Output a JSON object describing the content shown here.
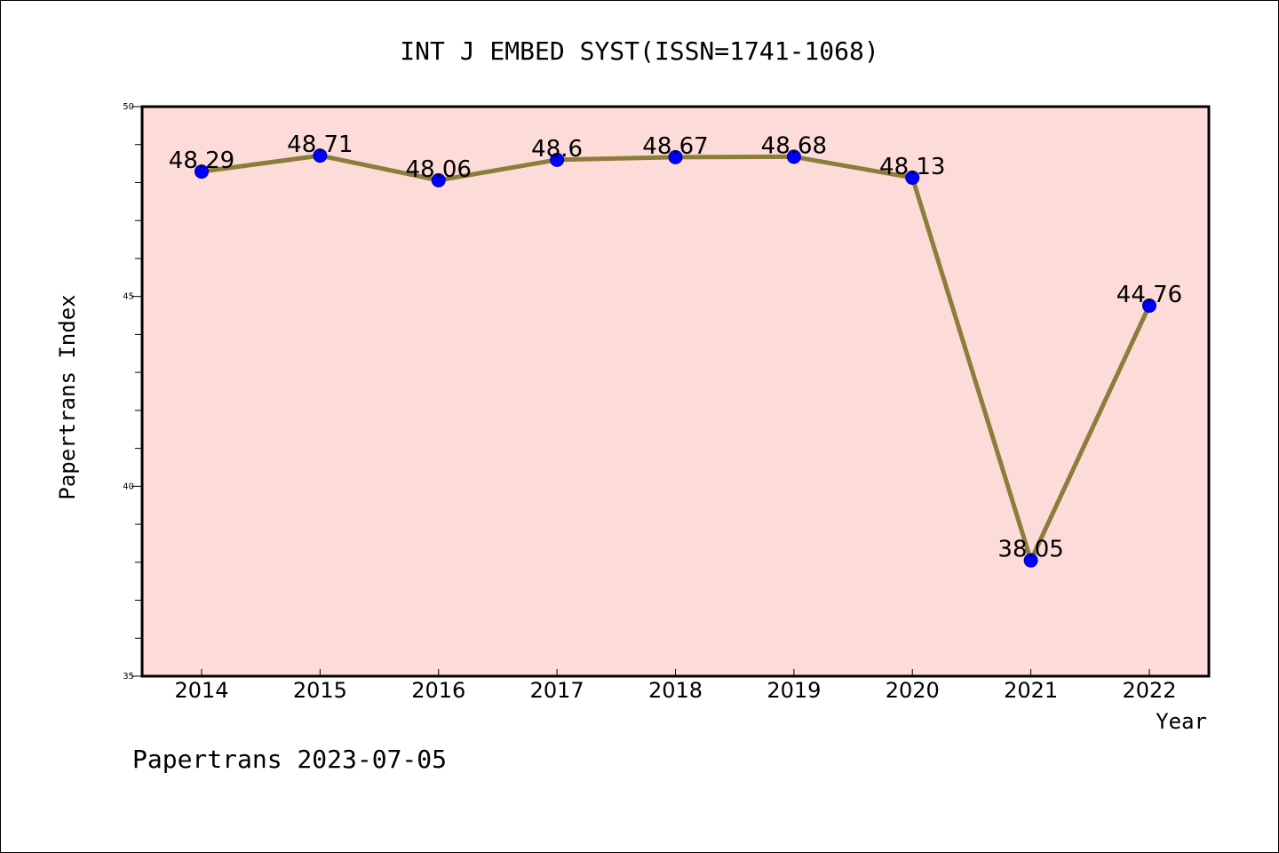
{
  "chart_data": {
    "type": "line",
    "title": "INT J EMBED SYST(ISSN=1741-1068)",
    "xlabel": "Year",
    "ylabel": "Papertrans Index",
    "categories": [
      "2014",
      "2015",
      "2016",
      "2017",
      "2018",
      "2019",
      "2020",
      "2021",
      "2022"
    ],
    "series": [
      {
        "values": [
          48.29,
          48.71,
          48.06,
          48.6,
          48.67,
          48.68,
          48.13,
          38.05,
          44.76
        ],
        "labels": [
          "48.29",
          "48.71",
          "48.06",
          "48.6",
          "48.67",
          "48.68",
          "48.13",
          "38.05",
          "44.76"
        ]
      }
    ],
    "ylim": [
      35,
      50
    ],
    "yticks": [
      "35",
      "40",
      "45",
      "50"
    ],
    "grid": false,
    "colors": {
      "plot_background": "#fddbd8",
      "line": "#8b7d3a",
      "marker": "#0000ff",
      "axes": "#000000"
    }
  },
  "footer": "Papertrans 2023-07-05"
}
